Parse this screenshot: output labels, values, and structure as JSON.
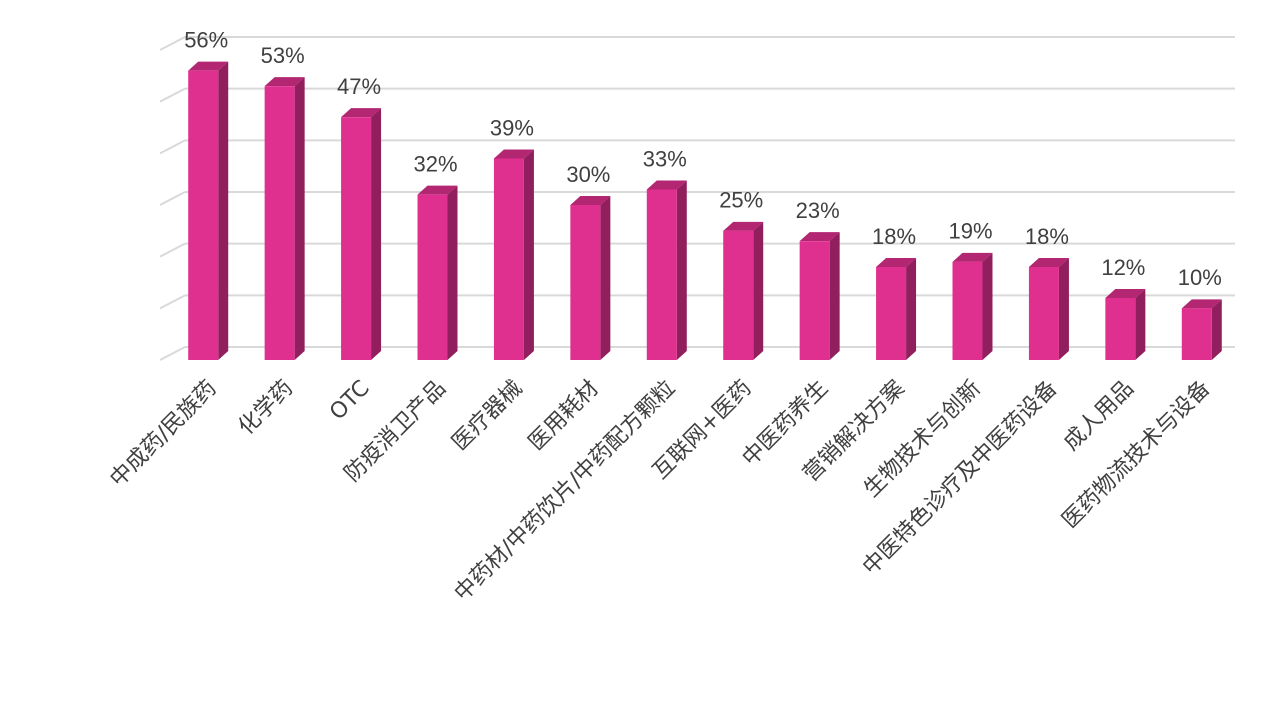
{
  "chart_data": {
    "type": "bar",
    "categories": [
      "中成药/民族药",
      "化学药",
      "OTC",
      "防疫消卫产品",
      "医疗器械",
      "医用耗材",
      "中药材/中药饮片/中药配方颗粒",
      "互联网+医药",
      "中医药养生",
      "营销解决方案",
      "生物技术与创新",
      "中医特色诊疗及中医药设备",
      "成人用品",
      "医药物流技术与设备"
    ],
    "values": [
      56,
      53,
      47,
      32,
      39,
      30,
      33,
      25,
      23,
      18,
      19,
      18,
      12,
      10
    ],
    "value_labels": [
      "56%",
      "53%",
      "47%",
      "32%",
      "39%",
      "30%",
      "33%",
      "25%",
      "23%",
      "18%",
      "19%",
      "18%",
      "12%",
      "10%"
    ],
    "color": "#e0308f",
    "ylim": [
      0,
      60
    ],
    "yticks": [
      0,
      10,
      20,
      30,
      40,
      50,
      60
    ],
    "grid": true
  }
}
